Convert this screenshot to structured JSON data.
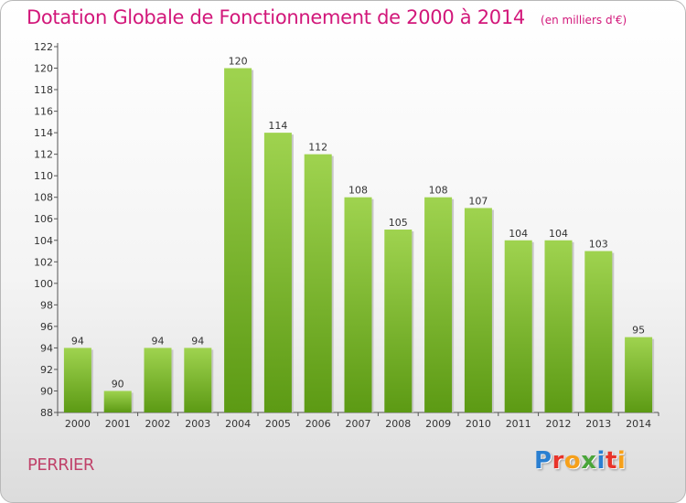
{
  "header": {
    "title": "Dotation Globale de Fonctionnement de 2000 à 2014",
    "unit": "(en milliers d'€)"
  },
  "footer": {
    "commune": "PERRIER",
    "logo_text": "Proxiti",
    "logo_colors": [
      "#2a7fd1",
      "#e8342a",
      "#f6a01a",
      "#4aa53a",
      "#2a7fd1",
      "#e8342a",
      "#f6a01a"
    ]
  },
  "colors": {
    "title": "#d2177a",
    "commune": "#c0426a",
    "bar_top": "#9fd34f",
    "bar_bottom": "#5c9a14",
    "axis": "#555555",
    "grid_tick": "#333333"
  },
  "chart_data": {
    "type": "bar",
    "categories": [
      "2000",
      "2001",
      "2002",
      "2003",
      "2004",
      "2005",
      "2006",
      "2007",
      "2008",
      "2009",
      "2010",
      "2011",
      "2012",
      "2013",
      "2014"
    ],
    "values": [
      94,
      90,
      94,
      94,
      120,
      114,
      112,
      108,
      105,
      108,
      107,
      104,
      104,
      103,
      95
    ],
    "ylim": [
      88,
      122
    ],
    "yticks": [
      88,
      90,
      92,
      94,
      96,
      98,
      100,
      102,
      104,
      106,
      108,
      110,
      112,
      114,
      116,
      118,
      120,
      122
    ],
    "value_labels": true,
    "grid": false,
    "title": "Dotation Globale de Fonctionnement de 2000 à 2014",
    "xlabel": "",
    "ylabel": ""
  }
}
